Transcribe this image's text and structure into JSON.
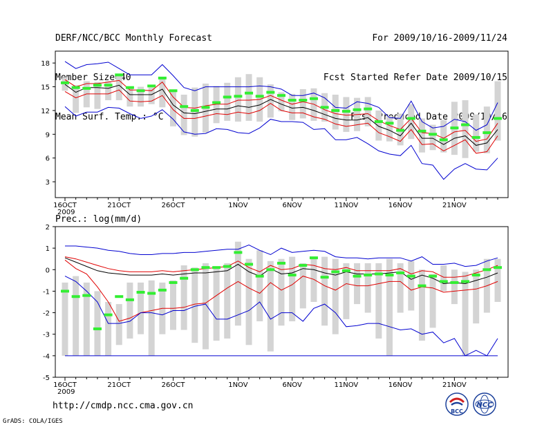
{
  "header": {
    "left": [
      "DERF/NCC/BCC Monthly Forecast",
      "Member Size=40",
      "Mean Surf. Temp.: °C"
    ],
    "right": [
      "For 2009/10/16-2009/11/24",
      "Fcst Started Refer Date 2009/10/15",
      "Fcst Produced Date 2009/10/16"
    ]
  },
  "footer": {
    "url": "http://cmdp.ncc.cma.gov.cn",
    "credit": "GrADS: COLA/IGES"
  },
  "logos": [
    "BCC",
    "NCC"
  ],
  "colors": {
    "mean": "#000000",
    "spread": "#e00000",
    "extreme": "#0000d0",
    "box": "#d4d4d4",
    "member": "#33ee33"
  },
  "chart_data": [
    {
      "type": "line",
      "title": "Mean Surf. Temp.: °C",
      "ylim": [
        1,
        19.5
      ],
      "yticks": [
        3,
        6,
        9,
        12,
        15,
        18
      ],
      "xticks": [
        {
          "i": 0,
          "label": "16OCT"
        },
        {
          "i": 5,
          "label": "21OCT"
        },
        {
          "i": 10,
          "label": "26OCT"
        },
        {
          "i": 16,
          "label": "1NOV"
        },
        {
          "i": 21,
          "label": "6NOV"
        },
        {
          "i": 26,
          "label": "11NOV"
        },
        {
          "i": 31,
          "label": "16NOV"
        },
        {
          "i": 36,
          "label": "21NOV"
        }
      ],
      "year_label": "2009",
      "series": [
        {
          "name": "max",
          "values": [
            18.2,
            17.3,
            17.8,
            17.9,
            18.1,
            17.3,
            16.5,
            16.5,
            16.5,
            17.8,
            16.4,
            14.9,
            14.5,
            15.0,
            15.0,
            15.0,
            15.0,
            15.0,
            15.1,
            15.0,
            14.7,
            13.9,
            13.9,
            14.2,
            13.6,
            12.4,
            12.3,
            13.1,
            12.9,
            12.4,
            11.1,
            11.0,
            13.2,
            10.6,
            9.8,
            10.0,
            10.9,
            10.6,
            9.5,
            10.2,
            13.0
          ]
        },
        {
          "name": "upper",
          "values": [
            15.9,
            15.0,
            15.4,
            15.4,
            15.6,
            15.8,
            14.6,
            14.6,
            14.5,
            15.6,
            13.7,
            12.4,
            12.3,
            12.6,
            12.8,
            12.8,
            13.3,
            13.3,
            13.4,
            13.9,
            13.3,
            12.8,
            13.1,
            12.8,
            12.1,
            11.6,
            11.4,
            11.5,
            11.6,
            10.7,
            10.1,
            9.6,
            11.0,
            9.2,
            9.1,
            8.5,
            9.3,
            9.5,
            8.1,
            8.4,
            10.4
          ]
        },
        {
          "name": "mean",
          "values": [
            15.3,
            14.3,
            14.9,
            14.9,
            14.8,
            15.2,
            14.0,
            14.0,
            14.0,
            14.7,
            12.7,
            11.7,
            11.6,
            11.9,
            12.2,
            12.2,
            12.6,
            12.4,
            12.7,
            13.4,
            12.8,
            12.3,
            12.4,
            12.0,
            11.5,
            11.0,
            10.8,
            10.8,
            11.1,
            10.0,
            9.5,
            8.8,
            10.4,
            8.5,
            8.5,
            7.7,
            8.5,
            8.8,
            7.6,
            7.9,
            9.6
          ]
        },
        {
          "name": "lower",
          "values": [
            14.4,
            13.6,
            14.1,
            14.1,
            14.1,
            14.6,
            13.2,
            13.1,
            13.2,
            13.9,
            12.1,
            11.0,
            11.0,
            11.3,
            11.6,
            11.5,
            11.8,
            11.6,
            12.0,
            12.9,
            12.0,
            11.7,
            11.7,
            11.2,
            10.9,
            10.3,
            10.0,
            10.2,
            10.4,
            9.2,
            8.7,
            8.1,
            9.6,
            7.7,
            7.8,
            6.9,
            7.6,
            8.3,
            6.6,
            6.8,
            8.8
          ]
        },
        {
          "name": "min",
          "values": [
            12.5,
            11.3,
            11.8,
            11.8,
            12.4,
            12.3,
            11.6,
            11.0,
            11.3,
            12.1,
            10.9,
            9.3,
            9.0,
            9.1,
            9.7,
            9.6,
            9.2,
            9.1,
            9.8,
            10.9,
            10.6,
            10.6,
            10.5,
            9.6,
            9.7,
            8.3,
            8.3,
            8.6,
            7.8,
            6.9,
            6.5,
            6.3,
            7.6,
            5.3,
            5.1,
            3.3,
            4.6,
            5.3,
            4.6,
            4.5,
            6.0
          ]
        }
      ],
      "box_low": [
        14.5,
        11.7,
        12.4,
        12.2,
        13.3,
        13.3,
        12.5,
        12.5,
        12.8,
        12.4,
        10.0,
        8.9,
        8.7,
        9.2,
        10.4,
        10.7,
        10.6,
        10.7,
        10.6,
        11.1,
        11.9,
        10.8,
        11.0,
        10.7,
        10.6,
        9.6,
        9.3,
        9.4,
        10.0,
        8.2,
        8.1,
        7.6,
        8.4,
        6.7,
        7.0,
        6.7,
        6.4,
        6.0,
        6.8,
        6.6,
        8.2
      ],
      "box_high": [
        16.2,
        15.2,
        15.7,
        15.6,
        15.7,
        16.5,
        15.0,
        15.0,
        14.9,
        16.2,
        14.4,
        14.0,
        14.9,
        15.4,
        15.1,
        15.5,
        16.2,
        16.6,
        16.2,
        15.3,
        14.3,
        14.1,
        14.7,
        14.8,
        14.2,
        14.0,
        13.7,
        13.6,
        13.7,
        12.0,
        11.3,
        11.6,
        12.8,
        11.0,
        10.2,
        10.8,
        13.1,
        13.3,
        11.5,
        12.5,
        15.7
      ],
      "member": [
        15.5,
        14.9,
        14.8,
        15.2,
        15.2,
        16.5,
        14.9,
        14.5,
        15.1,
        16.1,
        14.5,
        12.5,
        12.0,
        12.4,
        13.0,
        13.7,
        13.8,
        14.2,
        13.8,
        14.3,
        13.9,
        13.3,
        13.3,
        13.5,
        12.4,
        12.0,
        11.9,
        12.1,
        12.2,
        10.6,
        10.4,
        9.5,
        11.0,
        9.4,
        9.0,
        8.3,
        9.8,
        10.2,
        8.6,
        9.2,
        11.0
      ]
    },
    {
      "type": "line",
      "title": "Prec.: log(mm/d)",
      "ylim": [
        -5,
        2
      ],
      "yticks": [
        -5,
        -4,
        -3,
        -2,
        -1,
        0,
        1,
        2
      ],
      "xticks": [
        {
          "i": 0,
          "label": "16OCT"
        },
        {
          "i": 5,
          "label": "21OCT"
        },
        {
          "i": 10,
          "label": "26OCT"
        },
        {
          "i": 16,
          "label": "1NOV"
        },
        {
          "i": 21,
          "label": "6NOV"
        },
        {
          "i": 26,
          "label": "11NOV"
        },
        {
          "i": 31,
          "label": "16NOV"
        },
        {
          "i": 36,
          "label": "21NOV"
        }
      ],
      "year_label": "2009",
      "floor": -4,
      "series": [
        {
          "name": "max",
          "values": [
            1.1,
            1.1,
            1.05,
            1.0,
            0.9,
            0.85,
            0.75,
            0.7,
            0.7,
            0.75,
            0.75,
            0.8,
            0.8,
            0.85,
            0.9,
            0.95,
            0.95,
            1.15,
            0.9,
            0.7,
            1.0,
            0.8,
            0.85,
            0.9,
            0.85,
            0.6,
            0.55,
            0.55,
            0.5,
            0.55,
            0.55,
            0.55,
            0.4,
            0.6,
            0.25,
            0.25,
            0.3,
            0.15,
            0.2,
            0.4,
            0.55
          ]
        },
        {
          "name": "upper",
          "values": [
            0.6,
            0.5,
            0.35,
            0.2,
            0.05,
            -0.05,
            -0.1,
            -0.1,
            -0.1,
            -0.05,
            -0.1,
            -0.05,
            0.0,
            0.05,
            0.1,
            0.15,
            0.4,
            0.1,
            -0.1,
            0.2,
            0.0,
            0.05,
            0.25,
            0.2,
            0.05,
            0.0,
            0.1,
            -0.05,
            -0.05,
            -0.05,
            -0.05,
            0.05,
            -0.2,
            -0.05,
            -0.1,
            -0.35,
            -0.35,
            -0.3,
            -0.15,
            0.0,
            0.2
          ]
        },
        {
          "name": "mean",
          "values": [
            0.55,
            0.35,
            0.15,
            -0.05,
            -0.15,
            -0.2,
            -0.25,
            -0.25,
            -0.25,
            -0.2,
            -0.25,
            -0.2,
            -0.15,
            -0.15,
            -0.1,
            -0.05,
            0.25,
            -0.1,
            -0.3,
            0.05,
            -0.2,
            -0.15,
            0.05,
            0.0,
            -0.15,
            -0.25,
            -0.1,
            -0.2,
            -0.2,
            -0.2,
            -0.15,
            -0.1,
            -0.45,
            -0.25,
            -0.4,
            -0.65,
            -0.6,
            -0.65,
            -0.5,
            -0.35,
            -0.15
          ]
        },
        {
          "name": "lower",
          "values": [
            0.45,
            0.05,
            -0.2,
            -0.8,
            -1.5,
            -2.4,
            -2.25,
            -2.0,
            -1.9,
            -1.8,
            -1.8,
            -1.75,
            -1.6,
            -1.55,
            -1.2,
            -0.85,
            -0.55,
            -0.85,
            -1.1,
            -0.6,
            -0.95,
            -0.7,
            -0.3,
            -0.45,
            -0.75,
            -0.95,
            -0.65,
            -0.75,
            -0.75,
            -0.65,
            -0.55,
            -0.55,
            -0.95,
            -0.8,
            -0.85,
            -1.05,
            -1.0,
            -0.95,
            -0.9,
            -0.75,
            -0.55
          ]
        },
        {
          "name": "min",
          "values": [
            -0.3,
            -0.55,
            -1.0,
            -1.5,
            -2.5,
            -2.5,
            -2.4,
            -2.0,
            -2.0,
            -2.1,
            -1.9,
            -1.9,
            -1.7,
            -1.6,
            -2.3,
            -2.3,
            -2.1,
            -1.9,
            -1.5,
            -2.3,
            -2.0,
            -2.0,
            -2.4,
            -1.8,
            -1.6,
            -2.0,
            -2.65,
            -2.6,
            -2.5,
            -2.5,
            -2.65,
            -2.8,
            -2.75,
            -3.0,
            -2.9,
            -3.4,
            -3.2,
            -4.0,
            -3.75,
            -4.0,
            -3.2
          ]
        }
      ],
      "box_low": [
        -4,
        -4,
        -4,
        -4,
        -4,
        -3.5,
        -3.2,
        -3.0,
        -4,
        -3.0,
        -2.8,
        -2.8,
        -3.4,
        -3.7,
        -3.3,
        -3.2,
        -2.6,
        -3.5,
        -2.4,
        -3.8,
        -2.6,
        -2.4,
        -1.8,
        -1.5,
        -2.6,
        -3.0,
        -2.3,
        -1.6,
        -2.0,
        -3.2,
        -4,
        -2.0,
        -1.9,
        -3.3,
        -2.7,
        -1.0,
        -1.6,
        -4,
        -2.5,
        -2.0,
        -1.5
      ],
      "box_high": [
        -0.6,
        -0.3,
        -0.6,
        -1.0,
        -1.5,
        -1.6,
        -0.6,
        -0.6,
        -0.5,
        -0.6,
        -0.5,
        0.2,
        0.1,
        0.3,
        0.1,
        0.3,
        1.3,
        0.5,
        0.9,
        0.4,
        0.5,
        0.6,
        0.3,
        0.5,
        0.6,
        0.5,
        0.3,
        0.3,
        0.3,
        0.3,
        0.5,
        0.3,
        0.4,
        0.0,
        -0.2,
        0.2,
        0.0,
        -0.1,
        0.0,
        0.5,
        0.5
      ],
      "member": [
        -1.0,
        -1.25,
        -1.2,
        -2.75,
        -2.1,
        -1.25,
        -1.4,
        -1.05,
        -1.1,
        -0.95,
        -0.6,
        -0.4,
        0.0,
        0.1,
        0.1,
        0.15,
        0.8,
        0.25,
        -0.3,
        0.0,
        0.3,
        -0.25,
        0.2,
        0.55,
        -0.35,
        -0.1,
        -0.05,
        -0.3,
        -0.25,
        -0.2,
        -0.25,
        -0.15,
        -0.3,
        -0.75,
        -0.3,
        -0.55,
        -0.6,
        -0.55,
        -0.25,
        0.0,
        0.1
      ]
    }
  ]
}
